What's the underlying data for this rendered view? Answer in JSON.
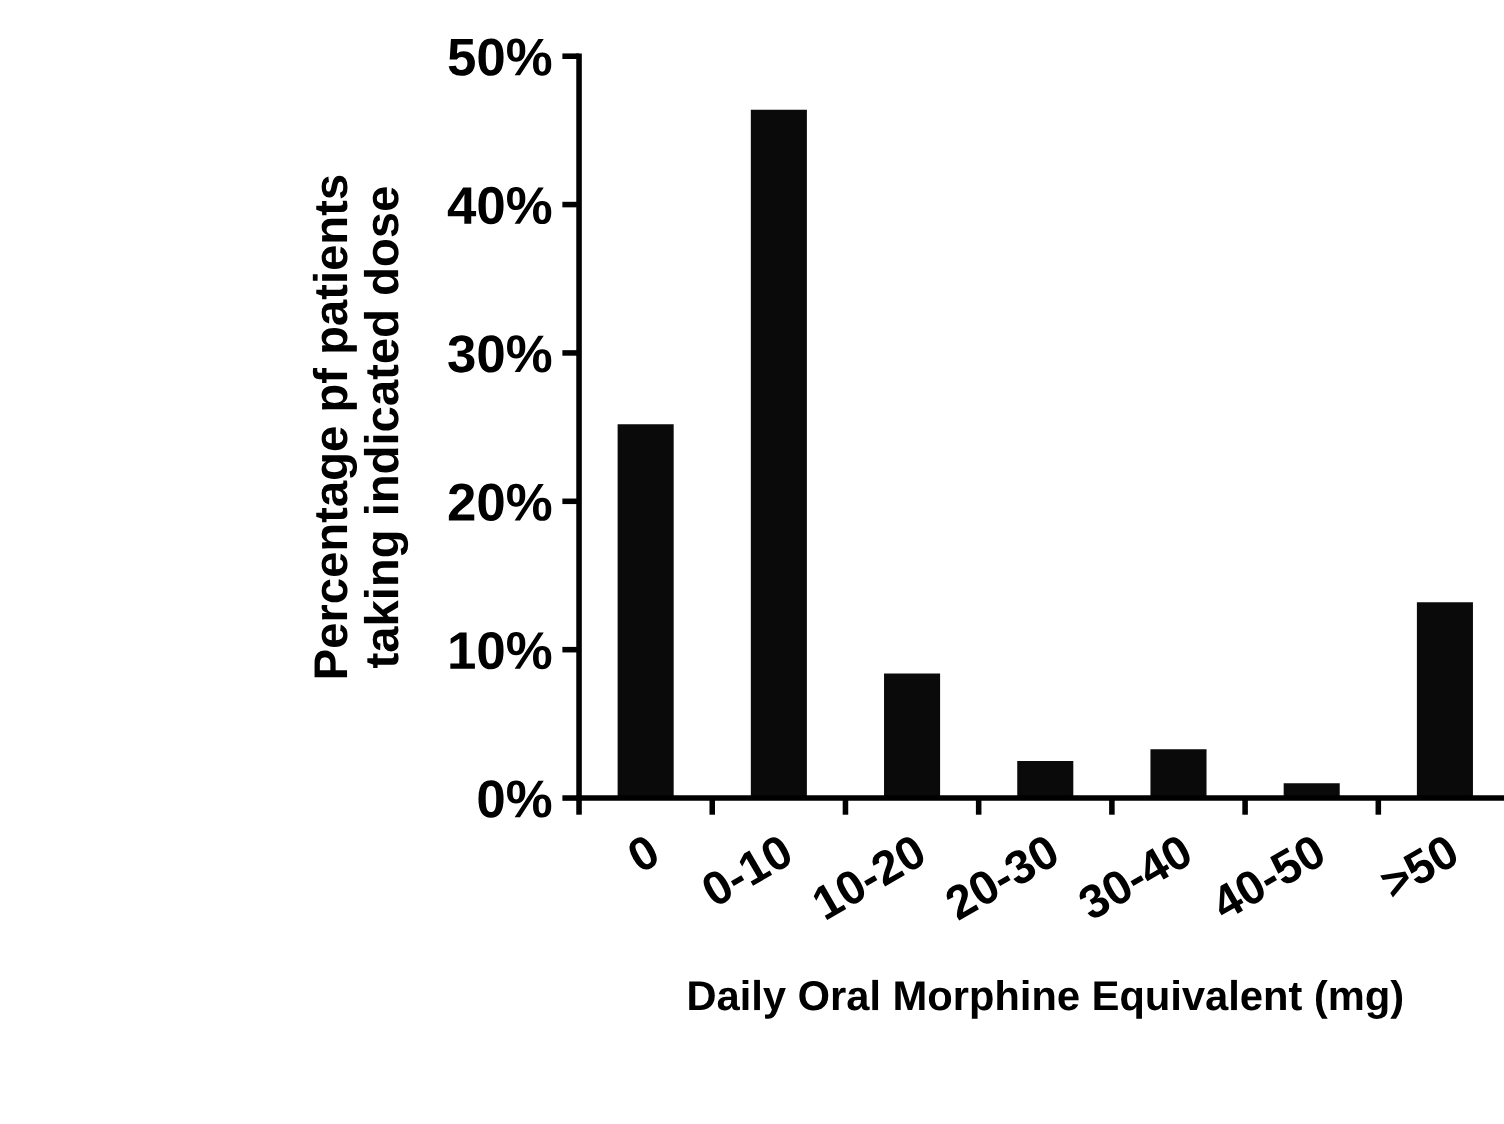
{
  "chart_data": {
    "type": "bar",
    "xlabel": "Daily Oral Morphine Equivalent (mg)",
    "ylabel": "Percentage pf patients\ntaking indicated dose",
    "categories": [
      "0",
      "0-10",
      "10-20",
      "20-30",
      "30-40",
      "40-50",
      ">50"
    ],
    "values": [
      25.1,
      46.3,
      8.3,
      2.4,
      3.2,
      0.9,
      13.1
    ],
    "color": "#0a0a0a",
    "ylim": [
      0,
      50
    ],
    "yticks": [
      {
        "value": 0,
        "label": "0%"
      },
      {
        "value": 10,
        "label": "10%"
      },
      {
        "value": 20,
        "label": "20%"
      },
      {
        "value": 30,
        "label": "30%"
      },
      {
        "value": 40,
        "label": "40%"
      },
      {
        "value": 50,
        "label": "50%"
      }
    ],
    "grid": false,
    "legend": false
  }
}
